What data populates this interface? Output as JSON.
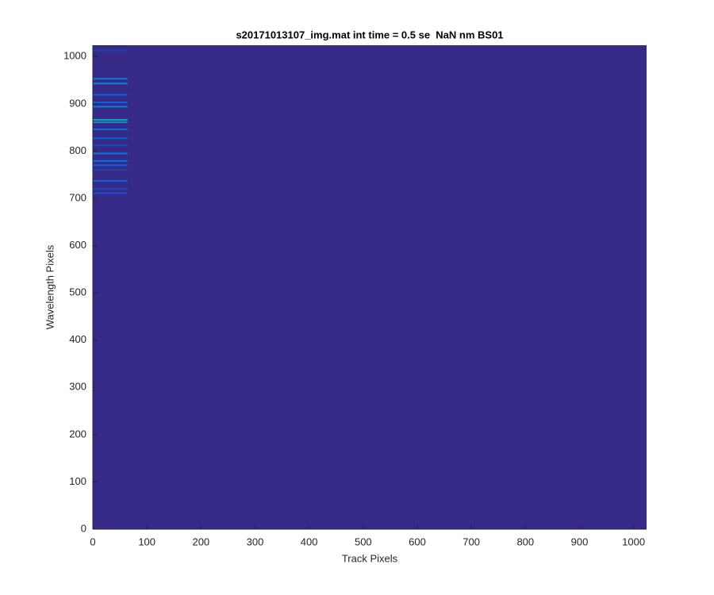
{
  "chart_data": {
    "type": "image",
    "title": "s20171013107_img.mat int time = 0.5 se  NaN nm BS01",
    "xlabel": "Track Pixels",
    "ylabel": "Wavelength Pixels",
    "xlim": [
      0,
      1024
    ],
    "ylim": [
      0,
      1024
    ],
    "xticks": [
      0,
      100,
      200,
      300,
      400,
      500,
      600,
      700,
      800,
      900,
      1000
    ],
    "yticks": [
      0,
      100,
      200,
      300,
      400,
      500,
      600,
      700,
      800,
      900,
      1000
    ],
    "colormap": "parula",
    "background": 0,
    "band_x": [
      0,
      64
    ],
    "band_rows": [
      1013,
      953,
      943,
      919,
      903,
      894,
      866,
      861,
      846,
      827,
      812,
      795,
      779,
      770,
      760,
      737,
      720,
      711
    ],
    "band_values": [
      0.08,
      0.3,
      0.35,
      0.2,
      0.2,
      0.3,
      0.55,
      0.35,
      0.25,
      0.2,
      0.1,
      0.3,
      0.25,
      0.2,
      0.08,
      0.2,
      0.1,
      0.15
    ]
  }
}
